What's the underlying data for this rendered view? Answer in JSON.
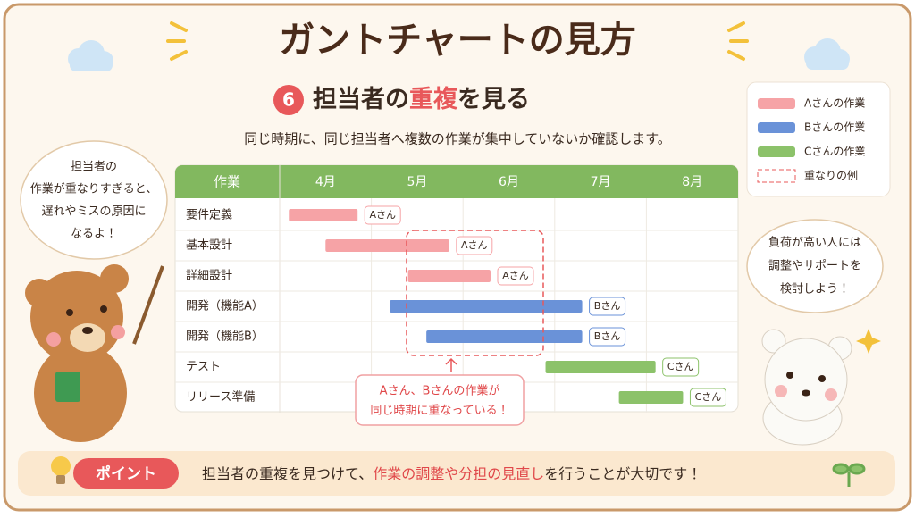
{
  "title": "ガントチャートの見方",
  "section": {
    "number": "6",
    "heading_pre": "担当者の",
    "heading_emph": "重複",
    "heading_post": "を見る"
  },
  "description": "同じ時期に、同じ担当者へ複数の作業が集中していないか確認します。",
  "bubble_left": [
    "担当者の",
    "作業が重なりすぎると、",
    "遅れやミスの原因に",
    "なるよ！"
  ],
  "bubble_right": [
    "負荷が高い人には",
    "調整やサポートを",
    "検討しよう！"
  ],
  "chart_data": {
    "type": "gantt",
    "header": "作業",
    "xlim": [
      4,
      9
    ],
    "xticks": [
      {
        "value": 4.5,
        "label": "4月"
      },
      {
        "value": 5.5,
        "label": "5月"
      },
      {
        "value": 6.5,
        "label": "6月"
      },
      {
        "value": 7.5,
        "label": "7月"
      },
      {
        "value": 8.5,
        "label": "8月"
      }
    ],
    "series": [
      {
        "name": "Aさんの作業",
        "color": "#f6a3a6",
        "tag": "Aさん"
      },
      {
        "name": "Bさんの作業",
        "color": "#6a92d8",
        "tag": "Bさん"
      },
      {
        "name": "Cさんの作業",
        "color": "#8cc26a",
        "tag": "Cさん"
      }
    ],
    "tasks": [
      {
        "name": "要件定義",
        "start": 4.1,
        "end": 4.85,
        "series": 0
      },
      {
        "name": "基本設計",
        "start": 4.5,
        "end": 5.85,
        "series": 0
      },
      {
        "name": "詳細設計",
        "start": 5.4,
        "end": 6.3,
        "series": 0
      },
      {
        "name": "開発（機能A）",
        "start": 5.2,
        "end": 7.3,
        "series": 1
      },
      {
        "name": "開発（機能B）",
        "start": 5.6,
        "end": 7.3,
        "series": 1
      },
      {
        "name": "テスト",
        "start": 6.9,
        "end": 8.1,
        "series": 2
      },
      {
        "name": "リリース準備",
        "start": 7.7,
        "end": 8.4,
        "series": 2
      }
    ],
    "overlap_label": "重なりの例",
    "callout": [
      "Aさん、Bさんの作業が",
      "同じ時期に重なっている！"
    ]
  },
  "point": {
    "badge": "ポイント",
    "text_pre": "担当者の重複を見つけて、",
    "text_emph": "作業の調整や分担の見直し",
    "text_post": "を行うことが大切です！"
  }
}
